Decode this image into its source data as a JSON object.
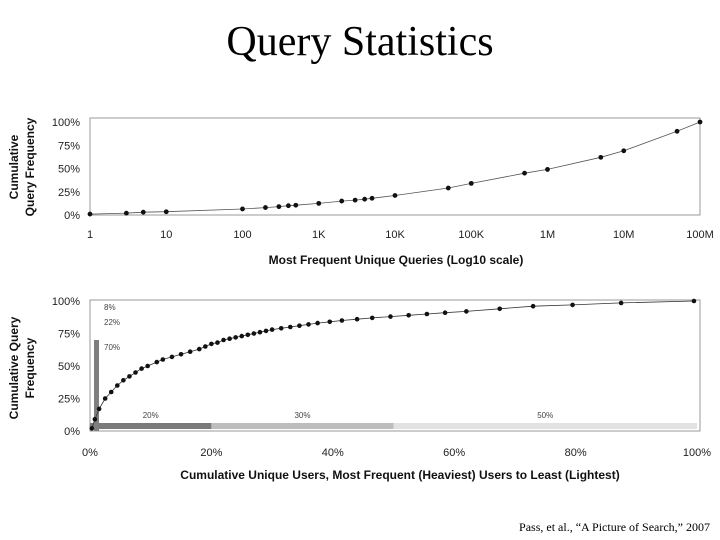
{
  "slide": {
    "title": "Query Statistics",
    "credit": "Pass, et al., “A Picture of Search,” 2007"
  },
  "chart_data": [
    {
      "type": "scatter",
      "title": "",
      "xlabel": "Most Frequent Unique Queries (Log10 scale)",
      "ylabel": [
        "Cumulative",
        "Query Frequency"
      ],
      "x_scale": "log10",
      "xlim": [
        1,
        100000000
      ],
      "ylim": [
        0,
        100
      ],
      "x_ticks": [
        1,
        10,
        100,
        1000,
        10000,
        100000,
        1000000,
        10000000,
        100000000
      ],
      "x_tick_labels": [
        "1",
        "10",
        "100",
        "1K",
        "10K",
        "100K",
        "1M",
        "10M",
        "100M"
      ],
      "y_ticks": [
        0,
        25,
        50,
        75,
        100
      ],
      "y_tick_labels": [
        "0%",
        "25%",
        "50%",
        "75%",
        "100%"
      ],
      "curve": true,
      "points": [
        {
          "x": 1,
          "y": 1
        },
        {
          "x": 3,
          "y": 2
        },
        {
          "x": 5,
          "y": 3
        },
        {
          "x": 10,
          "y": 3.5
        },
        {
          "x": 100,
          "y": 6.5
        },
        {
          "x": 200,
          "y": 8
        },
        {
          "x": 300,
          "y": 9
        },
        {
          "x": 400,
          "y": 10
        },
        {
          "x": 500,
          "y": 10.5
        },
        {
          "x": 1000,
          "y": 12.5
        },
        {
          "x": 2000,
          "y": 15
        },
        {
          "x": 3000,
          "y": 16
        },
        {
          "x": 4000,
          "y": 17
        },
        {
          "x": 5000,
          "y": 18
        },
        {
          "x": 10000,
          "y": 21
        },
        {
          "x": 50000,
          "y": 29
        },
        {
          "x": 100000,
          "y": 34
        },
        {
          "x": 500000,
          "y": 45
        },
        {
          "x": 1000000,
          "y": 49
        },
        {
          "x": 5000000,
          "y": 62
        },
        {
          "x": 10000000,
          "y": 69
        },
        {
          "x": 50000000,
          "y": 90
        },
        {
          "x": 100000000,
          "y": 100
        }
      ]
    },
    {
      "type": "scatter",
      "title": "",
      "xlabel": "Cumulative Unique Users, Most Frequent (Heaviest) Users to Least (Lightest)",
      "ylabel": [
        "Cumulative Query",
        "Frequency"
      ],
      "xlim": [
        0,
        100
      ],
      "ylim": [
        0,
        100
      ],
      "x_ticks": [
        0,
        20,
        40,
        60,
        80,
        100
      ],
      "x_tick_labels": [
        "0%",
        "20%",
        "40%",
        "60%",
        "80%",
        "100%"
      ],
      "y_ticks": [
        0,
        25,
        50,
        75,
        100
      ],
      "y_tick_labels": [
        "0%",
        "25%",
        "50%",
        "75%",
        "100%"
      ],
      "curve": true,
      "points": [
        {
          "x": 0.3,
          "y": 2
        },
        {
          "x": 0.8,
          "y": 9
        },
        {
          "x": 1.5,
          "y": 17
        },
        {
          "x": 2.5,
          "y": 25
        },
        {
          "x": 3.5,
          "y": 30
        },
        {
          "x": 4.5,
          "y": 35
        },
        {
          "x": 5.5,
          "y": 39
        },
        {
          "x": 6.5,
          "y": 42
        },
        {
          "x": 7.5,
          "y": 45
        },
        {
          "x": 8.5,
          "y": 48
        },
        {
          "x": 9.5,
          "y": 50
        },
        {
          "x": 11,
          "y": 53
        },
        {
          "x": 12,
          "y": 55
        },
        {
          "x": 13.5,
          "y": 57
        },
        {
          "x": 15,
          "y": 59
        },
        {
          "x": 16.5,
          "y": 61
        },
        {
          "x": 18,
          "y": 63
        },
        {
          "x": 19,
          "y": 65
        },
        {
          "x": 20,
          "y": 67
        },
        {
          "x": 21,
          "y": 68
        },
        {
          "x": 22,
          "y": 70
        },
        {
          "x": 23,
          "y": 71
        },
        {
          "x": 24,
          "y": 72
        },
        {
          "x": 25,
          "y": 73
        },
        {
          "x": 26,
          "y": 74
        },
        {
          "x": 27,
          "y": 75
        },
        {
          "x": 28,
          "y": 76
        },
        {
          "x": 29,
          "y": 77
        },
        {
          "x": 30,
          "y": 78
        },
        {
          "x": 31.5,
          "y": 79
        },
        {
          "x": 33,
          "y": 80
        },
        {
          "x": 34.5,
          "y": 81
        },
        {
          "x": 36,
          "y": 82
        },
        {
          "x": 37.5,
          "y": 83
        },
        {
          "x": 39.5,
          "y": 84
        },
        {
          "x": 41.5,
          "y": 85
        },
        {
          "x": 44,
          "y": 86
        },
        {
          "x": 46.5,
          "y": 87
        },
        {
          "x": 49.5,
          "y": 88
        },
        {
          "x": 52.5,
          "y": 89
        },
        {
          "x": 55.5,
          "y": 90
        },
        {
          "x": 58.5,
          "y": 91
        },
        {
          "x": 62,
          "y": 92
        },
        {
          "x": 67.5,
          "y": 94
        },
        {
          "x": 73,
          "y": 96
        },
        {
          "x": 79.5,
          "y": 97
        },
        {
          "x": 87.5,
          "y": 98.5
        },
        {
          "x": 99.5,
          "y": 100
        }
      ],
      "cumulative_query_bars": [
        {
          "label": "8%",
          "value": 8
        },
        {
          "label": "22%",
          "value": 22
        },
        {
          "label": "70%",
          "value": 70
        }
      ],
      "user_segments": [
        {
          "label": "20%",
          "start": 0,
          "end": 20
        },
        {
          "label": "30%",
          "start": 20,
          "end": 50
        },
        {
          "label": "50%",
          "start": 50,
          "end": 100
        }
      ]
    }
  ]
}
